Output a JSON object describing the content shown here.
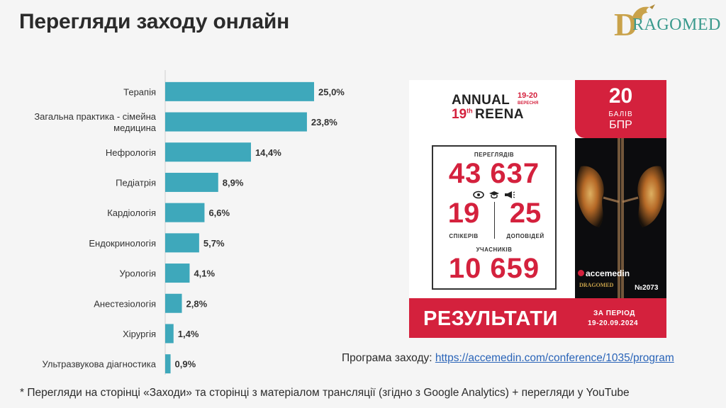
{
  "title": "Перегляди заходу онлайн",
  "logo": {
    "text": "DRAGOMED",
    "icon": "dragon-icon"
  },
  "colors": {
    "bar": "#3ea8bb",
    "accent_red": "#d4213d",
    "gold": "#c9a24a",
    "teal": "#3a9a8d"
  },
  "chart_data": {
    "type": "bar",
    "orientation": "horizontal",
    "title": "",
    "xlabel": "",
    "ylabel": "",
    "categories": [
      "Терапія",
      "Загальна практика - сімейна медицина",
      "Нефрологія",
      "Педіатрія",
      "Кардіологія",
      "Ендокринологія",
      "Урологія",
      "Анестезіологія",
      "Хірургія",
      "Ультразвукова діагностика"
    ],
    "values": [
      25.0,
      23.8,
      14.4,
      8.9,
      6.6,
      5.7,
      4.1,
      2.8,
      1.4,
      0.9
    ],
    "labels": [
      "25,0%",
      "23,8%",
      "14,4%",
      "8,9%",
      "6,6%",
      "5,7%",
      "4,1%",
      "2,8%",
      "1,4%",
      "0,9%"
    ],
    "xlim": [
      0,
      25
    ],
    "grid": false,
    "legend": "none"
  },
  "poster": {
    "annual": "ANNUAL",
    "dates_top": "19-20",
    "dates_month": "ВЕРЕСНЯ",
    "ordinal": "19",
    "ordinal_suffix": "th",
    "event": "REENA",
    "points_number": "20",
    "points_label1": "БАЛІВ",
    "points_label2": "БПР",
    "views_label": "ПЕРЕГЛЯДІВ",
    "views_value": "43 637",
    "icons": [
      "eye-icon",
      "graduation-cap-icon",
      "megaphone-icon"
    ],
    "speakers_value": "19",
    "speakers_label": "СПІКЕРІВ",
    "talks_value": "25",
    "talks_label": "ДОПОВІДЕЙ",
    "participants_label": "УЧАСНИКІВ",
    "participants_value": "10 659",
    "sponsor": "accemedin",
    "partner_logo": "DRAGOMED",
    "provider_number": "№2073",
    "results": "РЕЗУЛЬТАТИ",
    "period_label": "ЗА ПЕРІОД",
    "period_value": "19-20.09.2024"
  },
  "program": {
    "label": "Програма заходу: ",
    "link": "https://accemedin.com/conference/1035/program"
  },
  "footnote": "* Перегляди на сторінці «Заходи» та сторінці з матеріалом трансляції (згідно з Google Analytics) + перегляди у YouTube"
}
